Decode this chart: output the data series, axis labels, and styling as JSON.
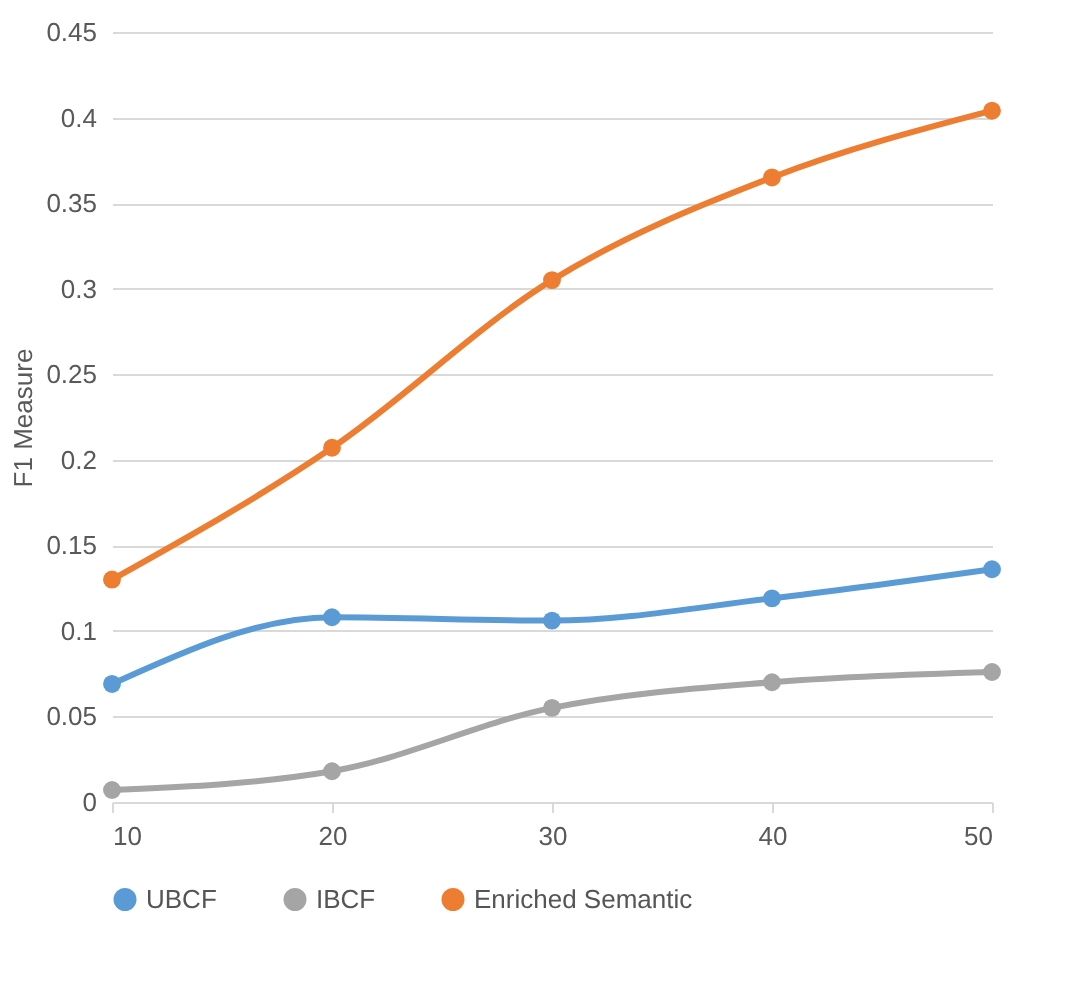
{
  "chart_data": {
    "type": "line",
    "ylabel": "F1 Measure",
    "x": [
      10,
      20,
      30,
      40,
      50
    ],
    "series": [
      {
        "name": "UBCF",
        "color": "#5b9bd5",
        "values": [
          0.069,
          0.108,
          0.106,
          0.119,
          0.136
        ]
      },
      {
        "name": "IBCF",
        "color": "#a5a5a5",
        "values": [
          0.007,
          0.018,
          0.055,
          0.07,
          0.076
        ]
      },
      {
        "name": "Enriched Semantic",
        "color": "#ed7d31",
        "values": [
          0.13,
          0.207,
          0.305,
          0.365,
          0.404
        ]
      }
    ],
    "xlim": [
      10,
      50
    ],
    "xticks": [
      10,
      20,
      30,
      40,
      50
    ],
    "ylim": [
      0,
      0.45
    ],
    "yticks": [
      0,
      0.05,
      0.1,
      0.15,
      0.2,
      0.25,
      0.3,
      0.35,
      0.4,
      0.45
    ],
    "grid": "y",
    "legend": "bottom",
    "marker": "circle",
    "line_style": "solid"
  }
}
